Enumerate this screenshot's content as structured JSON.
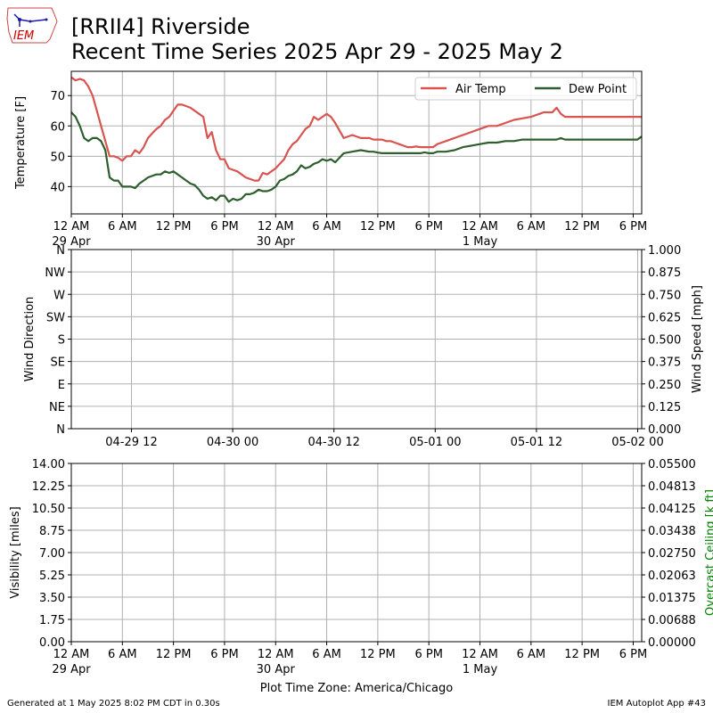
{
  "header": {
    "title_line1": "[RRII4] Riverside",
    "title_line2": "Recent Time Series 2025 Apr 29 - 2025 May 2",
    "logo_text": "IEM"
  },
  "footer": {
    "left": "Generated at 1 May 2025 8:02 PM CDT in 0.30s",
    "right": "IEM Autoplot App #43"
  },
  "colors": {
    "air_temp": "#d9534f",
    "dew_point": "#2e5e2e",
    "grid": "#b0b0b0",
    "ceiling_axis": "#008000",
    "logo": "#1a1aa6",
    "logo_text": "#cc0000"
  },
  "chart_data": [
    {
      "type": "line",
      "xlabel": "",
      "ylabel": "Temperature [F]",
      "ylim": [
        31,
        78
      ],
      "yticks": [
        "40",
        "50",
        "60",
        "70"
      ],
      "xlim": [
        0,
        67
      ],
      "xticks": [
        {
          "h": 0,
          "label": "12 AM",
          "sub": "29 Apr"
        },
        {
          "h": 6,
          "label": "6 AM",
          "sub": ""
        },
        {
          "h": 12,
          "label": "12 PM",
          "sub": ""
        },
        {
          "h": 18,
          "label": "6 PM",
          "sub": ""
        },
        {
          "h": 24,
          "label": "12 AM",
          "sub": "30 Apr"
        },
        {
          "h": 30,
          "label": "6 AM",
          "sub": ""
        },
        {
          "h": 36,
          "label": "12 PM",
          "sub": ""
        },
        {
          "h": 42,
          "label": "6 PM",
          "sub": ""
        },
        {
          "h": 48,
          "label": "12 AM",
          "sub": "1 May"
        },
        {
          "h": 54,
          "label": "6 AM",
          "sub": ""
        },
        {
          "h": 60,
          "label": "12 PM",
          "sub": ""
        },
        {
          "h": 66,
          "label": "6 PM",
          "sub": ""
        }
      ],
      "grid": true,
      "legend": "top-right",
      "series": [
        {
          "name": "Air Temp",
          "x": [
            0,
            0.5,
            1,
            1.5,
            2,
            2.5,
            3,
            3.5,
            4,
            4.5,
            5,
            5.5,
            6,
            6.5,
            7,
            7.5,
            8,
            8.5,
            9,
            9.5,
            10,
            10.5,
            11,
            11.5,
            12,
            12.5,
            13,
            13.5,
            14,
            14.5,
            15,
            15.5,
            16,
            16.5,
            17,
            17.5,
            18,
            18.5,
            19,
            19.5,
            20,
            20.5,
            21,
            21.5,
            22,
            22.5,
            23,
            23.5,
            24,
            24.5,
            25,
            25.5,
            26,
            26.5,
            27,
            27.5,
            28,
            28.5,
            29,
            29.5,
            30,
            30.5,
            31,
            32,
            33,
            34,
            35,
            35.5,
            36,
            36.5,
            37,
            37.5,
            38,
            38.5,
            39,
            39.5,
            40,
            40.5,
            41,
            41.5,
            42,
            42.5,
            43,
            43.5,
            44,
            45,
            46,
            47,
            48,
            49,
            50,
            51,
            52,
            53,
            54,
            55,
            55.5,
            56,
            56.5,
            57,
            57.5,
            58,
            58.5,
            59,
            59.5,
            60,
            60.5,
            61,
            61.5,
            62,
            62.5,
            63,
            63.5,
            64,
            64.5,
            65,
            65.5,
            66,
            66.5,
            67
          ],
          "values": [
            76,
            75,
            75.5,
            75,
            73,
            70,
            65,
            60,
            55,
            50,
            50,
            49.5,
            48.5,
            50,
            50,
            52,
            51,
            53,
            56,
            57.5,
            59,
            60,
            62,
            63,
            65,
            67,
            67,
            66.5,
            66,
            65,
            64,
            63,
            56,
            58,
            52,
            49,
            49,
            46,
            45.5,
            45,
            44,
            43,
            42.5,
            42,
            42,
            44.5,
            44,
            45,
            46,
            47.5,
            49,
            52,
            54,
            55,
            57,
            59,
            60,
            63,
            62,
            63,
            64,
            63,
            61,
            56,
            57,
            56,
            56,
            55.5,
            55.5,
            55.5,
            55,
            55,
            54.5,
            54,
            53.5,
            53,
            53,
            53.2,
            53,
            53,
            53,
            53,
            54,
            54.5,
            55,
            56,
            57,
            58,
            59,
            60,
            60,
            61,
            62,
            62.5,
            63,
            64,
            64.5,
            64.5,
            64.5,
            66,
            64,
            63,
            63,
            63,
            63,
            63,
            63,
            63,
            63,
            63,
            63,
            63,
            63,
            63,
            63,
            63,
            63,
            63,
            63,
            63
          ],
          "color": "#d9534f"
        },
        {
          "name": "Dew Point",
          "x": [
            0,
            0.5,
            1,
            1.5,
            2,
            2.5,
            3,
            3.5,
            4,
            4.5,
            5,
            5.5,
            6,
            6.5,
            7,
            7.5,
            8,
            8.5,
            9,
            9.5,
            10,
            10.5,
            11,
            11.5,
            12,
            12.5,
            13,
            13.5,
            14,
            14.5,
            15,
            15.5,
            16,
            16.5,
            17,
            17.5,
            18,
            18.5,
            19,
            19.5,
            20,
            20.5,
            21,
            21.5,
            22,
            22.5,
            23,
            23.5,
            24,
            24.5,
            25,
            25.5,
            26,
            26.5,
            27,
            27.5,
            28,
            28.5,
            29,
            29.5,
            30,
            30.5,
            31,
            32,
            33,
            34,
            35,
            35.5,
            36,
            36.5,
            37,
            37.5,
            38,
            38.5,
            39,
            39.5,
            40,
            40.5,
            41,
            41.5,
            42,
            42.5,
            43,
            43.5,
            44,
            45,
            46,
            47,
            48,
            49,
            50,
            51,
            52,
            53,
            54,
            55,
            55.5,
            56,
            56.5,
            57,
            57.5,
            58,
            58.5,
            59,
            59.5,
            60,
            60.5,
            61,
            61.5,
            62,
            62.5,
            63,
            63.5,
            64,
            64.5,
            65,
            65.5,
            66,
            66.5,
            67
          ],
          "values": [
            64.5,
            63,
            60,
            56,
            55,
            56,
            56,
            55,
            52,
            43,
            42,
            42,
            40,
            40,
            40,
            39.5,
            41,
            42,
            43,
            43.5,
            44,
            44,
            45,
            44.5,
            45,
            44,
            43,
            42,
            41,
            40.5,
            39,
            37,
            36,
            36.5,
            35.5,
            37,
            37,
            35,
            36,
            35.5,
            36,
            37.5,
            37.5,
            38,
            39,
            38.5,
            38.5,
            39,
            40,
            42,
            42.5,
            43.5,
            44,
            45,
            47,
            46,
            46.5,
            47.5,
            48,
            49,
            48.5,
            49,
            48,
            51,
            51.5,
            52,
            51.5,
            51.5,
            51.2,
            51,
            51,
            51,
            51,
            51,
            51,
            51,
            51,
            51,
            51,
            51.3,
            51,
            51,
            51.5,
            51.5,
            51.5,
            52,
            53,
            53.5,
            54,
            54.5,
            54.5,
            55,
            55,
            55.5,
            55.5,
            55.5,
            55.5,
            55.5,
            55.5,
            55.5,
            56,
            55.5,
            55.5,
            55.5,
            55.5,
            55.5,
            55.5,
            55.5,
            55.5,
            55.5,
            55.5,
            55.5,
            55.5,
            55.5,
            55.5,
            55.5,
            55.5,
            55.5,
            55.5,
            56.5
          ],
          "color": "#2e5e2e"
        }
      ]
    },
    {
      "type": "line",
      "xlabel": "",
      "ylabel": "Wind Direction",
      "ylabel_right": "Wind Speed [mph]",
      "yticks": [
        "N",
        "NE",
        "E",
        "SE",
        "S",
        "SW",
        "W",
        "NW",
        "N"
      ],
      "yticks_right": [
        "0.000",
        "0.125",
        "0.250",
        "0.375",
        "0.500",
        "0.625",
        "0.750",
        "0.875",
        "1.000"
      ],
      "xticks": [
        "04-29 12",
        "04-30 00",
        "04-30 12",
        "05-01 00",
        "05-01 12",
        "05-02 00"
      ],
      "grid": true,
      "series": []
    },
    {
      "type": "line",
      "xlabel": "Plot Time Zone: America/Chicago",
      "ylabel": "Visibility [miles]",
      "ylabel_right": "Overcast Ceiling [k ft]",
      "ylim": [
        0,
        14
      ],
      "yticks": [
        "0.00",
        "1.75",
        "3.50",
        "5.25",
        "7.00",
        "8.75",
        "10.50",
        "12.25",
        "14.00"
      ],
      "yticks_right": [
        "0.00000",
        "0.00688",
        "0.01375",
        "0.02063",
        "0.02750",
        "0.03438",
        "0.04125",
        "0.04813",
        "0.05500"
      ],
      "xticks": [
        {
          "label": "12 AM",
          "sub": "29 Apr"
        },
        {
          "label": "6 AM",
          "sub": ""
        },
        {
          "label": "12 PM",
          "sub": ""
        },
        {
          "label": "6 PM",
          "sub": ""
        },
        {
          "label": "12 AM",
          "sub": "30 Apr"
        },
        {
          "label": "6 AM",
          "sub": ""
        },
        {
          "label": "12 PM",
          "sub": ""
        },
        {
          "label": "6 PM",
          "sub": ""
        },
        {
          "label": "12 AM",
          "sub": "1 May"
        },
        {
          "label": "6 AM",
          "sub": ""
        },
        {
          "label": "12 PM",
          "sub": ""
        },
        {
          "label": "6 PM",
          "sub": ""
        }
      ],
      "grid": true,
      "series": []
    }
  ]
}
